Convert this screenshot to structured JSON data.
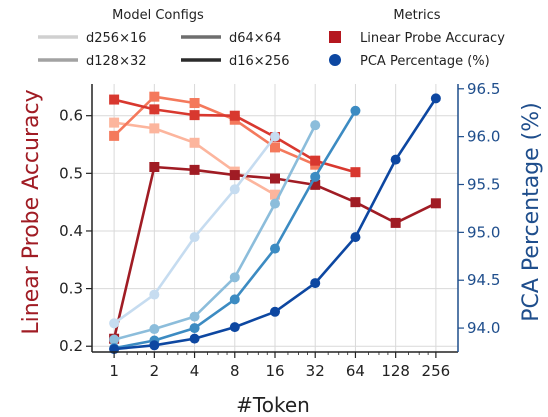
{
  "chart_data": {
    "type": "line",
    "xlabel": "#Token",
    "ylabel_left": "Linear Probe Accuracy",
    "ylabel_right": "PCA Percentage (%)",
    "x_scale": "log2",
    "x": [
      1,
      2,
      4,
      8,
      16,
      32,
      64,
      128,
      256
    ],
    "x_tick_labels": [
      "1",
      "2",
      "4",
      "8",
      "16",
      "32",
      "64",
      "128",
      "256"
    ],
    "ylim_left": [
      0.19,
      0.655
    ],
    "yticks_left": [
      0.2,
      0.3,
      0.4,
      0.5,
      0.6
    ],
    "yticks_left_labels": [
      "0.2",
      "0.3",
      "0.4",
      "0.5",
      "0.6"
    ],
    "ylim_right": [
      93.75,
      96.55
    ],
    "yticks_right": [
      94.0,
      94.5,
      95.0,
      95.5,
      96.0,
      96.5
    ],
    "yticks_right_labels": [
      "94.0",
      "94.5",
      "95.0",
      "95.5",
      "96.0",
      "96.5"
    ],
    "grid": true,
    "colors": {
      "left_axis": "#a01c24",
      "right_axis": "#1f4e8c"
    },
    "legend_configs": {
      "title": "Model Configs",
      "items": [
        {
          "label": "d256×16",
          "color": "#d0d0d0"
        },
        {
          "label": "d64×64",
          "color": "#6e6e6e"
        },
        {
          "label": "d128×32",
          "color": "#a2a2a2"
        },
        {
          "label": "d16×256",
          "color": "#2b2b2b"
        }
      ]
    },
    "legend_metrics": {
      "title": "Metrics",
      "items": [
        {
          "label": "Linear Probe Accuracy",
          "marker": "square",
          "color": "#b5171f"
        },
        {
          "label": "PCA Percentage (%)",
          "marker": "circle",
          "color": "#0d47a1"
        }
      ]
    },
    "series": [
      {
        "config": "d256×16",
        "metric": "accuracy",
        "axis": "left",
        "color": "#fcb59d",
        "x": [
          1,
          2,
          4,
          8,
          16
        ],
        "y": [
          0.588,
          0.578,
          0.553,
          0.503,
          0.463
        ]
      },
      {
        "config": "d128×32",
        "metric": "accuracy",
        "axis": "left",
        "color": "#f4795c",
        "x": [
          1,
          2,
          4,
          8,
          16,
          32
        ],
        "y": [
          0.565,
          0.633,
          0.622,
          0.593,
          0.545,
          0.515
        ]
      },
      {
        "config": "d64×64",
        "metric": "accuracy",
        "axis": "left",
        "color": "#d8382f",
        "x": [
          1,
          2,
          4,
          8,
          16,
          32,
          64
        ],
        "y": [
          0.628,
          0.611,
          0.601,
          0.6,
          0.563,
          0.522,
          0.502
        ]
      },
      {
        "config": "d16×256",
        "metric": "accuracy",
        "axis": "left",
        "color": "#a01c24",
        "x": [
          1,
          2,
          4,
          8,
          16,
          32,
          64,
          128,
          256
        ],
        "y": [
          0.213,
          0.511,
          0.506,
          0.497,
          0.491,
          0.48,
          0.45,
          0.414,
          0.448
        ]
      },
      {
        "config": "d256×16",
        "metric": "pca",
        "axis": "right",
        "color": "#c6dcf0",
        "x": [
          1,
          2,
          4,
          8,
          16
        ],
        "y": [
          94.05,
          94.35,
          94.95,
          95.45,
          96.0
        ]
      },
      {
        "config": "d128×32",
        "metric": "pca",
        "axis": "right",
        "color": "#8cbddb",
        "x": [
          1,
          2,
          4,
          8,
          16,
          32
        ],
        "y": [
          93.88,
          93.99,
          94.12,
          94.53,
          95.3,
          96.12
        ]
      },
      {
        "config": "d64×64",
        "metric": "pca",
        "axis": "right",
        "color": "#3c8bc2",
        "x": [
          1,
          2,
          4,
          8,
          16,
          32,
          64
        ],
        "y": [
          93.79,
          93.87,
          94.0,
          94.3,
          94.83,
          95.58,
          96.27
        ]
      },
      {
        "config": "d16×256",
        "metric": "pca",
        "axis": "right",
        "color": "#0d47a1",
        "x": [
          1,
          2,
          4,
          8,
          16,
          32,
          64,
          128,
          256
        ],
        "y": [
          93.78,
          93.82,
          93.89,
          94.01,
          94.17,
          94.47,
          94.95,
          95.76,
          96.4
        ]
      }
    ]
  }
}
